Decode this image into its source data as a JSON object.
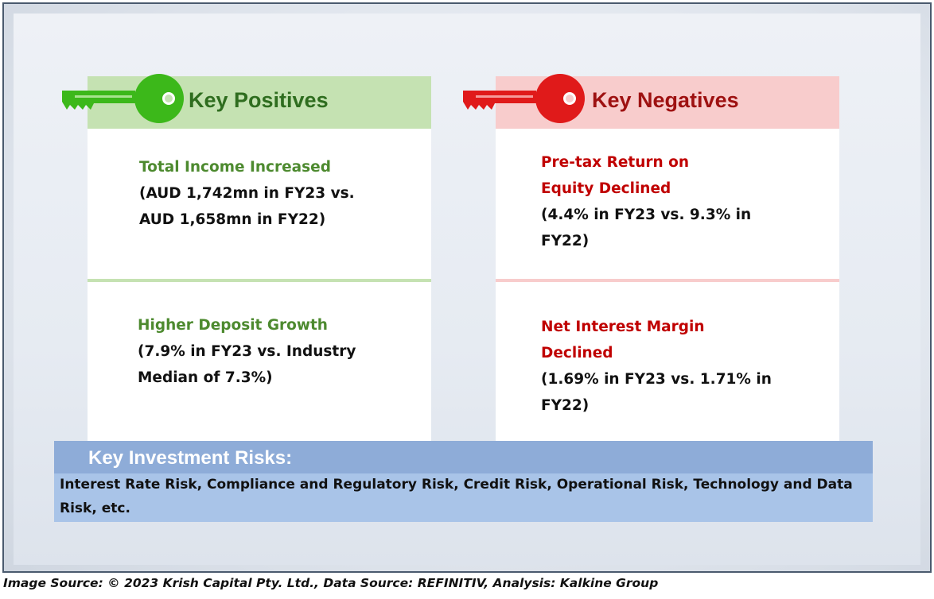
{
  "positives": {
    "title": "Key Positives",
    "items": [
      {
        "title": "Total Income Increased",
        "detail_1": "(AUD 1,742mn in FY23 vs.",
        "detail_2": "AUD 1,658mn in FY22)"
      },
      {
        "title": "Higher Deposit Growth",
        "detail_1": "(7.9% in FY23 vs. Industry",
        "detail_2": "Median of 7.3%)"
      }
    ]
  },
  "negatives": {
    "title": "Key Negatives",
    "items": [
      {
        "title_1": "Pre-tax Return on",
        "title_2": "Equity Declined",
        "detail_1": "(4.4% in FY23 vs. 9.3% in",
        "detail_2": "FY22)"
      },
      {
        "title_1": "Net Interest Margin",
        "title_2": "Declined",
        "detail_1": "(1.69% in FY23 vs. 1.71% in",
        "detail_2": "FY22)"
      }
    ]
  },
  "risks": {
    "title": "Key Investment Risks:",
    "text_1": "Interest Rate Risk, Compliance and Regulatory Risk, Credit Risk, Operational Risk, Technology and Data",
    "text_2": "Risk, etc."
  },
  "source": "Image Source: © 2023 Krish Capital Pty. Ltd., Data Source: REFINITIV, Analysis: Kalkine Group",
  "colors": {
    "positive_accent": "#2f6d1f",
    "negative_accent": "#9e1111",
    "key_green": "#3cb81a",
    "key_red": "#e01a1a",
    "risk_header": "#8eacd8"
  }
}
